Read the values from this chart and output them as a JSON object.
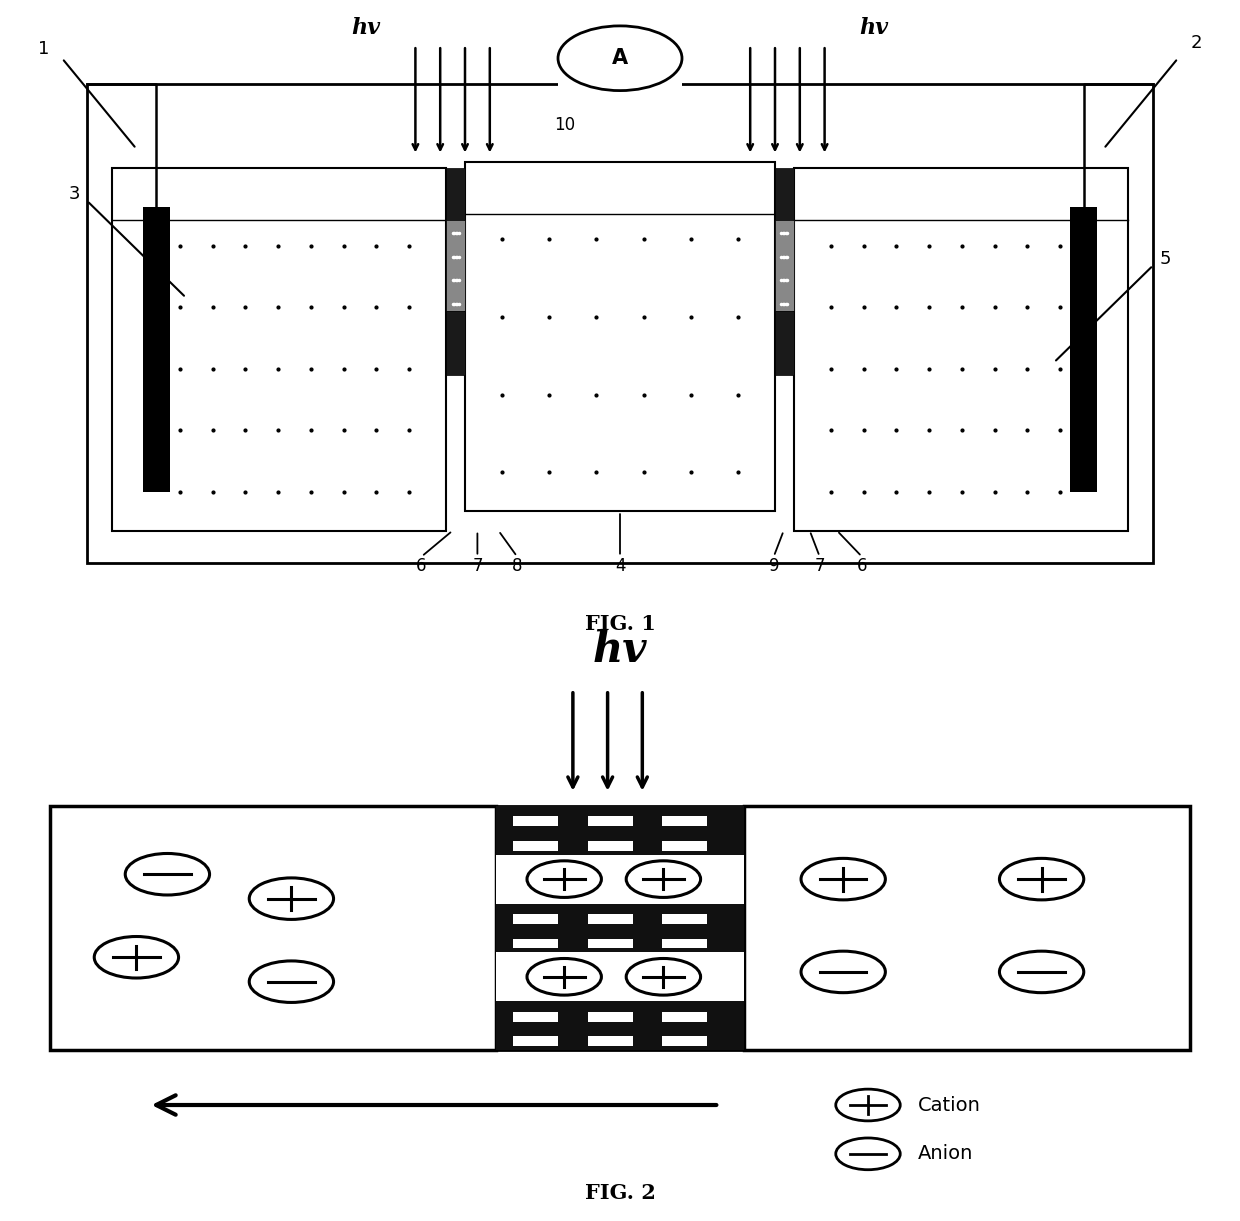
{
  "background": "#ffffff",
  "black": "#000000",
  "fig1_caption": "FIG. 1",
  "fig2_caption": "FIG. 2",
  "ammeter_label": "A",
  "ammeter_number": "10"
}
